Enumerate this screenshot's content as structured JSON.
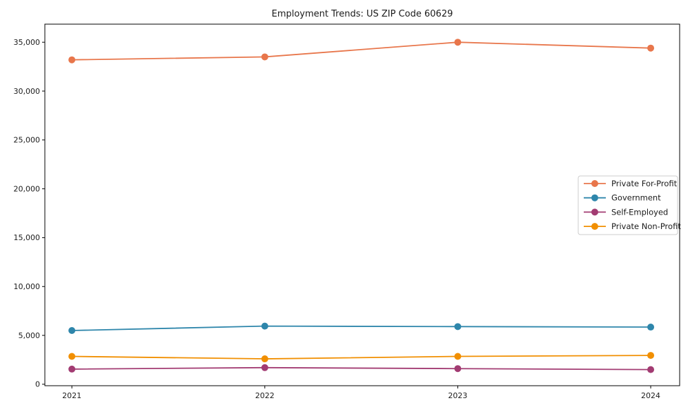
{
  "chart_data": {
    "type": "line",
    "title": "Employment Trends: US ZIP Code 60629",
    "xlabel": "",
    "ylabel": "",
    "x": [
      2021,
      2022,
      2023,
      2024
    ],
    "xtick_labels": [
      "2021",
      "2022",
      "2023",
      "2024"
    ],
    "yticks": [
      0,
      5000,
      10000,
      15000,
      20000,
      25000,
      30000,
      35000
    ],
    "ytick_labels": [
      "0",
      "5,000",
      "10,000",
      "15,000",
      "20,000",
      "25,000",
      "30,000",
      "35,000"
    ],
    "xlim": [
      2020.86,
      2024.15
    ],
    "ylim": [
      -150,
      36850
    ],
    "grid": false,
    "legend_position": "center-right",
    "series": [
      {
        "name": "Private For-Profit",
        "color": "#E8764B",
        "values": [
          33200,
          33500,
          35000,
          34400
        ]
      },
      {
        "name": "Government",
        "color": "#2E86AB",
        "values": [
          5500,
          5950,
          5900,
          5850
        ]
      },
      {
        "name": "Self-Employed",
        "color": "#A23B72",
        "values": [
          1550,
          1700,
          1600,
          1500
        ]
      },
      {
        "name": "Private Non-Profit",
        "color": "#F18F01",
        "values": [
          2850,
          2600,
          2850,
          2950
        ]
      }
    ],
    "colors": {
      "axis": "#000000",
      "text": "#1a1a1a",
      "legend_border": "#cccccc",
      "background": "#ffffff"
    }
  }
}
